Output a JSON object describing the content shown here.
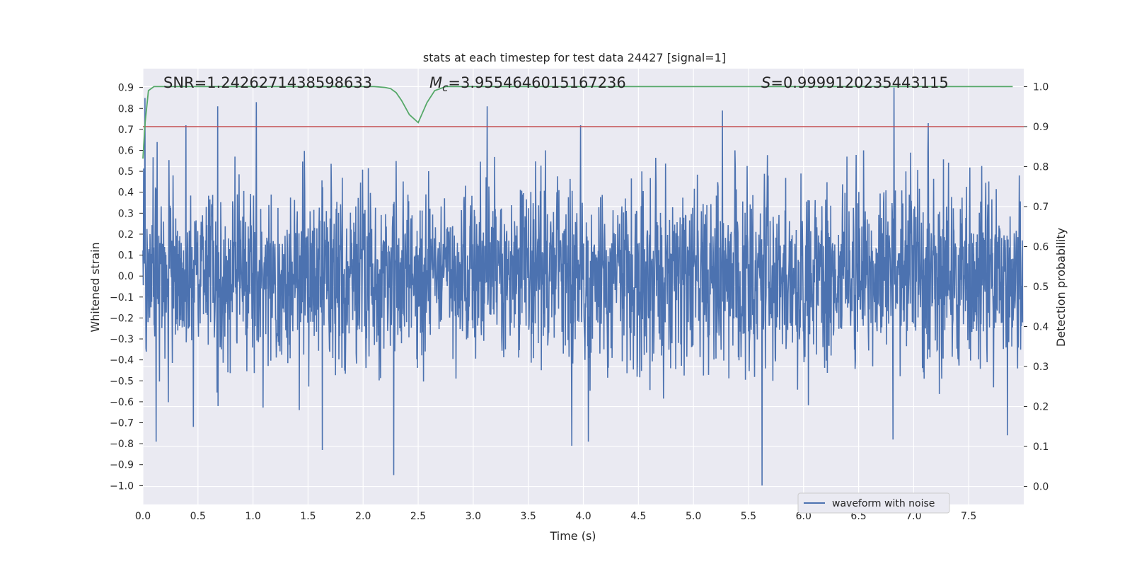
{
  "chart_data": {
    "type": "line",
    "title": "stats at each timestep for test data 24427 [signal=1]",
    "xlabel": "Time (s)",
    "ylabel": "Whitened strain",
    "y2label": "Detection probability",
    "xlim": [
      0.0,
      8.0
    ],
    "ylim": [
      -1.09,
      0.99
    ],
    "y2lim": [
      -0.045,
      1.045
    ],
    "xticks": [
      "0.0",
      "0.5",
      "1.0",
      "1.5",
      "2.0",
      "2.5",
      "3.0",
      "3.5",
      "4.0",
      "4.5",
      "5.0",
      "5.5",
      "6.0",
      "6.5",
      "7.0",
      "7.5"
    ],
    "yticks": [
      "0.9",
      "0.8",
      "0.7",
      "0.6",
      "0.5",
      "0.4",
      "0.3",
      "0.2",
      "0.1",
      "0.0",
      "−0.1",
      "−0.2",
      "−0.3",
      "−0.4",
      "−0.5",
      "−0.6",
      "−0.7",
      "−0.8",
      "−0.9",
      "−1.0"
    ],
    "y2ticks": [
      "1.0",
      "0.9",
      "0.8",
      "0.7",
      "0.6",
      "0.5",
      "0.4",
      "0.3",
      "0.2",
      "0.1",
      "0.0"
    ],
    "annotations": {
      "snr": "SNR=1.2426271438598633",
      "mc": "=3.9554646015167236",
      "mc_symbol": "M",
      "mc_sub": "c",
      "s": "=0.9999120235443115",
      "s_symbol": "S"
    },
    "legend": {
      "label": "waveform with noise",
      "placement": "lower-right"
    },
    "threshold": {
      "value": 0.9,
      "axis": "right"
    },
    "colors": {
      "waveform": "#4c72b0",
      "probability": "#55a868",
      "threshold": "#c44e52",
      "background": "#eaeaf2",
      "grid": "#ffffff"
    },
    "waveform": {
      "name": "waveform with noise",
      "description_range": [
        -1.0,
        0.9
      ],
      "spikes": [
        {
          "x": 0.02,
          "y": 0.85
        },
        {
          "x": 0.13,
          "y": 0.64
        },
        {
          "x": 0.39,
          "y": 0.72
        },
        {
          "x": 0.68,
          "y": 0.81
        },
        {
          "x": 1.03,
          "y": 0.83
        },
        {
          "x": 3.13,
          "y": 0.81
        },
        {
          "x": 3.98,
          "y": 0.72
        },
        {
          "x": 5.27,
          "y": 0.79
        },
        {
          "x": 6.83,
          "y": 0.9
        },
        {
          "x": 7.14,
          "y": 0.73
        },
        {
          "x": 0.12,
          "y": -0.79
        },
        {
          "x": 0.46,
          "y": -0.72
        },
        {
          "x": 1.63,
          "y": -0.83
        },
        {
          "x": 2.28,
          "y": -0.95
        },
        {
          "x": 3.9,
          "y": -0.81
        },
        {
          "x": 4.05,
          "y": -0.79
        },
        {
          "x": 5.63,
          "y": -1.0
        },
        {
          "x": 6.82,
          "y": -0.78
        },
        {
          "x": 7.86,
          "y": -0.76
        }
      ]
    },
    "probability": {
      "name": "detection probability",
      "x": [
        0.0,
        0.02,
        0.05,
        0.1,
        0.15,
        0.3,
        1.0,
        2.0,
        2.1,
        2.2,
        2.25,
        2.3,
        2.35,
        2.42,
        2.5,
        2.58,
        2.65,
        2.75,
        3.0,
        5.0,
        7.9
      ],
      "y": [
        0.82,
        0.91,
        0.99,
        1.0,
        1.0,
        1.0,
        1.0,
        1.0,
        1.0,
        0.998,
        0.995,
        0.985,
        0.965,
        0.93,
        0.91,
        0.96,
        0.99,
        1.0,
        1.0,
        1.0,
        1.0
      ]
    }
  }
}
